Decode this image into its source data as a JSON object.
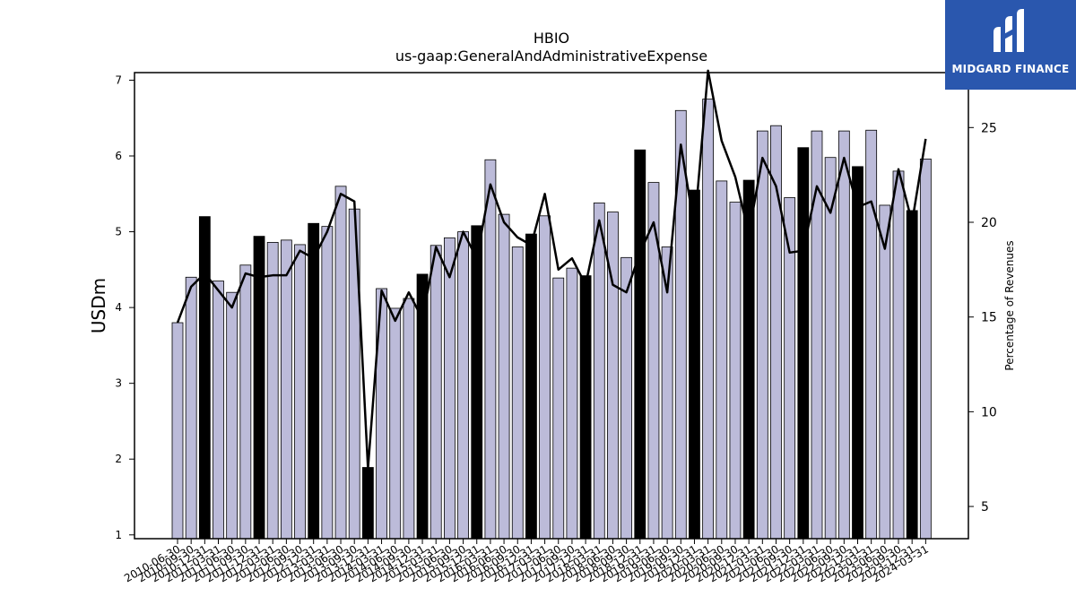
{
  "logo": {
    "text": "MIDGARD FINANCE",
    "icon": "midgard-logo-icon",
    "bg_color": "#2a57ae"
  },
  "chart_data": {
    "type": "bar",
    "title": "HBIO",
    "subtitle": "us-gaap:GeneralAndAdministrativeExpense",
    "ylabel": "USDm",
    "y2label": "Percentage of Revenues",
    "ylim": [
      0.95,
      7.1
    ],
    "y2lim": [
      3.3,
      27.9
    ],
    "yticks": [
      1,
      2,
      3,
      4,
      5,
      6,
      7
    ],
    "y2ticks": [
      5,
      10,
      15,
      20,
      25
    ],
    "colors": {
      "bar": "#bcbbd9",
      "bar_q4": "#000000",
      "line": "#000000"
    },
    "categories": [
      "2010-06-30",
      "2010-09-30",
      "2010-12-31",
      "2011-03-31",
      "2011-06-30",
      "2011-09-30",
      "2011-12-31",
      "2012-03-31",
      "2012-06-30",
      "2012-09-30",
      "2012-12-31",
      "2013-03-31",
      "2013-06-30",
      "2013-09-30",
      "2013-12-31",
      "2014-03-31",
      "2014-06-30",
      "2014-09-30",
      "2014-12-31",
      "2015-03-31",
      "2015-06-30",
      "2015-09-30",
      "2015-12-31",
      "2016-03-31",
      "2016-06-30",
      "2016-09-30",
      "2016-12-31",
      "2017-03-31",
      "2017-06-30",
      "2017-09-30",
      "2017-12-31",
      "2018-03-31",
      "2018-06-30",
      "2018-09-30",
      "2018-12-31",
      "2019-03-31",
      "2019-06-30",
      "2019-09-30",
      "2019-12-31",
      "2020-03-31",
      "2020-06-30",
      "2020-09-30",
      "2020-12-31",
      "2021-03-31",
      "2021-06-30",
      "2021-09-30",
      "2021-12-31",
      "2022-03-31",
      "2022-06-30",
      "2022-09-30",
      "2022-12-31",
      "2023-03-31",
      "2023-06-30",
      "2023-09-30",
      "2023-12-31",
      "2024-03-31"
    ],
    "series": [
      {
        "values": [
          3.8,
          4.4,
          5.2,
          4.35,
          4.2,
          4.56,
          4.94,
          4.86,
          4.89,
          4.83,
          5.11,
          5.07,
          5.6,
          5.3,
          1.89,
          4.25,
          3.99,
          4.12,
          4.44,
          4.82,
          4.92,
          5.0,
          5.08,
          5.95,
          5.23,
          4.8,
          4.97,
          5.21,
          4.39,
          4.52,
          4.42,
          5.38,
          5.26,
          4.66,
          6.08,
          5.65,
          4.8,
          6.6,
          5.55,
          6.75,
          5.67,
          5.39,
          5.68,
          6.33,
          6.4,
          5.45,
          6.11,
          6.33,
          5.98,
          6.33,
          5.86,
          6.34,
          5.35,
          5.8,
          5.28,
          5.96
        ],
        "q4": [
          false,
          false,
          true,
          false,
          false,
          false,
          true,
          false,
          false,
          false,
          true,
          false,
          false,
          false,
          true,
          false,
          false,
          false,
          true,
          false,
          false,
          false,
          true,
          false,
          false,
          false,
          true,
          false,
          false,
          false,
          true,
          false,
          false,
          false,
          true,
          false,
          false,
          false,
          true,
          false,
          false,
          false,
          true,
          false,
          false,
          false,
          true,
          false,
          false,
          false,
          true,
          false,
          false,
          false,
          true,
          false
        ]
      },
      {
        "axis": "right",
        "values": [
          14.7,
          16.6,
          17.3,
          16.4,
          15.5,
          17.3,
          17.1,
          17.2,
          17.2,
          18.5,
          18.1,
          19.5,
          21.5,
          21.1,
          7.0,
          16.4,
          14.8,
          16.3,
          14.9,
          18.7,
          17.1,
          19.5,
          18.1,
          22.0,
          20.0,
          19.2,
          18.8,
          21.5,
          17.5,
          18.1,
          16.7,
          20.1,
          16.7,
          16.3,
          18.4,
          20.0,
          16.3,
          24.1,
          19.7,
          28.0,
          24.3,
          22.4,
          19.4,
          23.4,
          21.9,
          18.4,
          18.5,
          21.9,
          20.5,
          23.4,
          20.8,
          21.1,
          18.6,
          22.8,
          20.0,
          24.4
        ]
      }
    ]
  }
}
